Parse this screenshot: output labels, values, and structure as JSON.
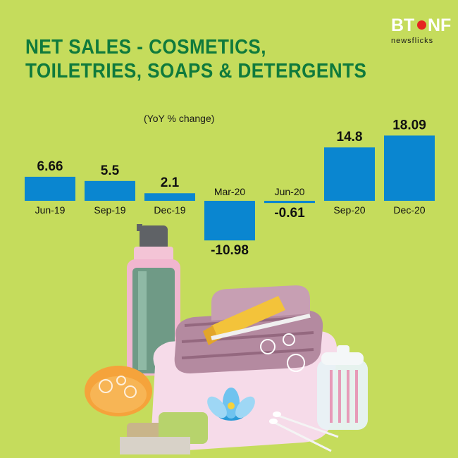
{
  "title_line1": "NET SALES - COSMETICS,",
  "title_line2": "TOILETRIES, SOAPS & DETERGENTS",
  "logo": {
    "bt": "BT",
    "nf": "NF",
    "sub": "newsflicks"
  },
  "chart_data": {
    "type": "bar",
    "title": "NET SALES - COSMETICS, TOILETRIES, SOAPS & DETERGENTS",
    "subtitle": "(YoY % change)",
    "categories": [
      "Jun-19",
      "Sep-19",
      "Dec-19",
      "Mar-20",
      "Jun-20",
      "Sep-20",
      "Dec-20"
    ],
    "values": [
      6.66,
      5.5,
      2.1,
      -10.98,
      -0.61,
      14.8,
      18.09
    ],
    "value_labels": [
      "6.66",
      "5.5",
      "2.1",
      "-10.98",
      "-0.61",
      "14.8",
      "18.09"
    ],
    "grid": false,
    "legend": "none"
  },
  "colors": {
    "background": "#c5dc5c",
    "bar": "#0a86d0",
    "title": "#0f7a3c"
  }
}
